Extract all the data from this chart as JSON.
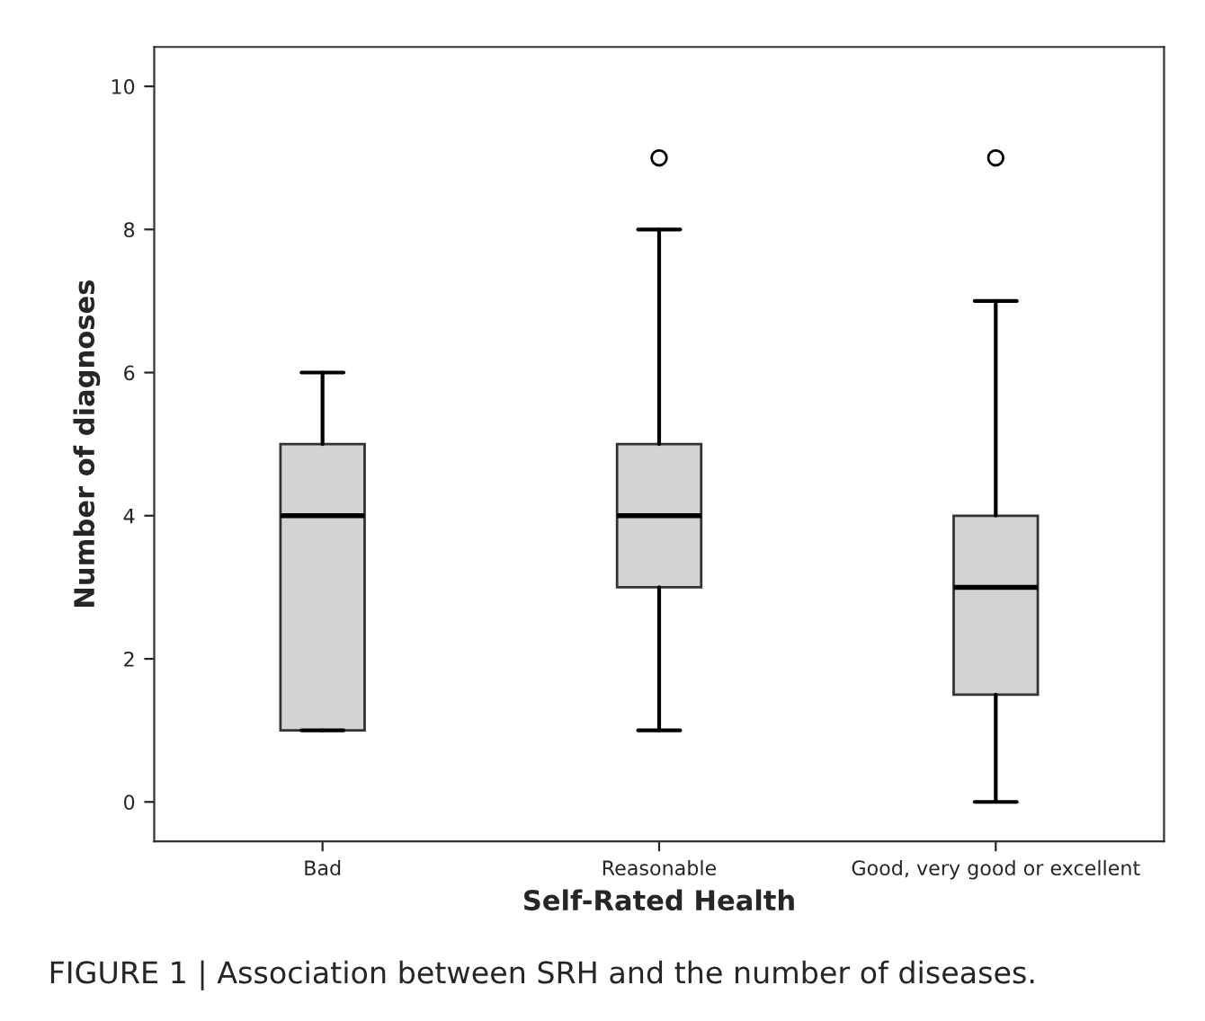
{
  "chart_data": {
    "type": "box",
    "xlabel": "Self-Rated Health",
    "ylabel": "Number of diagnoses",
    "categories": [
      "Bad",
      "Reasonable",
      "Good, very good or excellent"
    ],
    "boxes": [
      {
        "low": 1,
        "q1": 1,
        "median": 4,
        "q3": 5,
        "high": 6
      },
      {
        "low": 1,
        "q1": 3,
        "median": 4,
        "q3": 5,
        "high": 8,
        "outliers": [
          9
        ]
      },
      {
        "low": 0,
        "q1": 1.5,
        "median": 3,
        "q3": 4,
        "high": 7,
        "outliers": [
          9
        ]
      }
    ],
    "color": "#d3d3d3",
    "ylim": [
      -0.55,
      10.55
    ],
    "yticks": [
      0,
      2,
      4,
      6,
      8,
      10
    ],
    "grid": false,
    "annotations": [
      "FIGURE 1 | Association between SRH and the number of diseases."
    ]
  }
}
